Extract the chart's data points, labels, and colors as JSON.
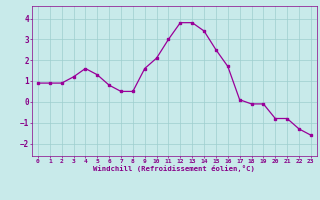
{
  "x": [
    0,
    1,
    2,
    3,
    4,
    5,
    6,
    7,
    8,
    9,
    10,
    11,
    12,
    13,
    14,
    15,
    16,
    17,
    18,
    19,
    20,
    21,
    22,
    23
  ],
  "y": [
    0.9,
    0.9,
    0.9,
    1.2,
    1.6,
    1.3,
    0.8,
    0.5,
    0.5,
    1.6,
    2.1,
    3.0,
    3.8,
    3.8,
    3.4,
    2.5,
    1.7,
    0.1,
    -0.1,
    -0.1,
    -0.8,
    -0.8,
    -1.3,
    -1.6
  ],
  "line_color": "#990099",
  "marker": "s",
  "marker_size": 2.0,
  "bg_color": "#c8eaea",
  "grid_color": "#9ecece",
  "xlabel": "Windchill (Refroidissement éolien,°C)",
  "xlabel_color": "#880088",
  "tick_color": "#880088",
  "xlim": [
    -0.5,
    23.5
  ],
  "ylim": [
    -2.6,
    4.6
  ],
  "yticks": [
    -2,
    -1,
    0,
    1,
    2,
    3,
    4
  ],
  "xticks": [
    0,
    1,
    2,
    3,
    4,
    5,
    6,
    7,
    8,
    9,
    10,
    11,
    12,
    13,
    14,
    15,
    16,
    17,
    18,
    19,
    20,
    21,
    22,
    23
  ]
}
